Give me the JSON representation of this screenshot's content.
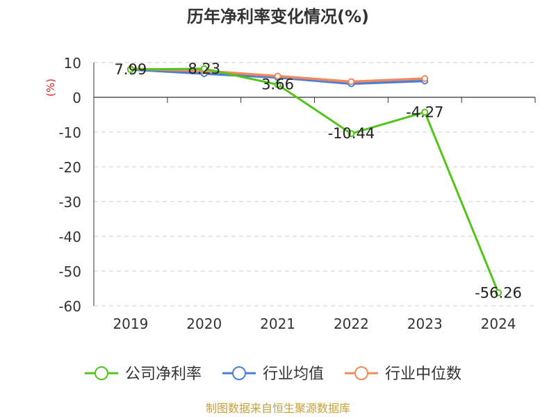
{
  "chart_data": {
    "type": "line",
    "title": "历年净利率变化情况(%)",
    "ylabel": "(%)",
    "categories": [
      "2019",
      "2020",
      "2021",
      "2022",
      "2023",
      "2024"
    ],
    "ylim": [
      -60,
      10
    ],
    "yticks": [
      10,
      0,
      -10,
      -20,
      -30,
      -40,
      -50,
      -60
    ],
    "grid": true,
    "legend_position": "bottom",
    "series": [
      {
        "name": "公司净利率",
        "color": "#52c41a",
        "values": [
          7.99,
          8.23,
          3.66,
          -10.44,
          -4.27,
          -56.26
        ],
        "labels": [
          "7.99",
          "8.23",
          "3.66",
          "-10.44",
          "-4.27",
          "-56.26"
        ]
      },
      {
        "name": "行业均值",
        "color": "#4a7fd4",
        "values": [
          8.0,
          6.8,
          5.7,
          3.9,
          4.7,
          null
        ]
      },
      {
        "name": "行业中位数",
        "color": "#f2895e",
        "values": [
          8.2,
          7.6,
          6.1,
          4.5,
          5.4,
          null
        ]
      }
    ],
    "source": "制图数据来自恒生聚源数据库"
  }
}
